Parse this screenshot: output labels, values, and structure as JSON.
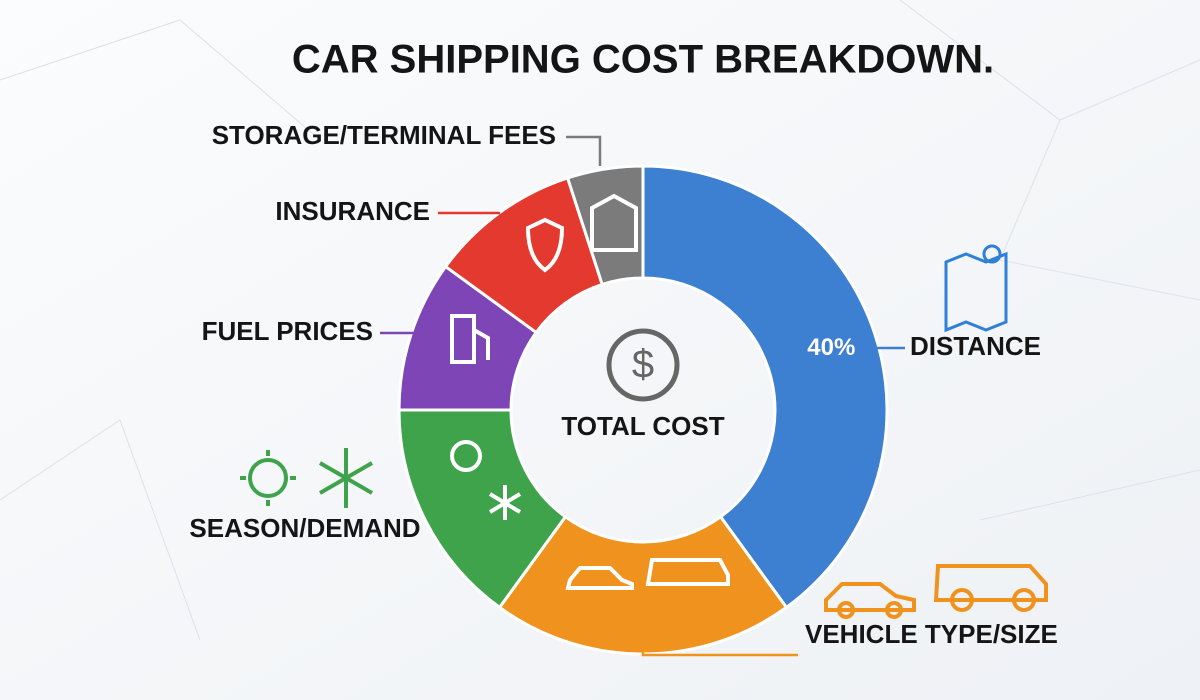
{
  "chart_data": {
    "type": "donut",
    "title": "CAR SHIPPING COST BREAKDOWN.",
    "center_label": "TOTAL COST",
    "categories": [
      "DISTANCE",
      "VEHICLE TYPE/SIZE",
      "SEASON/DEMAND",
      "FUEL PRICES",
      "INSURANCE",
      "STORAGE/TERMINAL FEES"
    ],
    "values": [
      40,
      20,
      15,
      10,
      10,
      5
    ],
    "value_labels": [
      "40%",
      null,
      null,
      null,
      null,
      null
    ],
    "colors": [
      "#3d7fd0",
      "#f0921e",
      "#3ea34b",
      "#7d45b6",
      "#e4392f",
      "#7b7b7b"
    ]
  }
}
